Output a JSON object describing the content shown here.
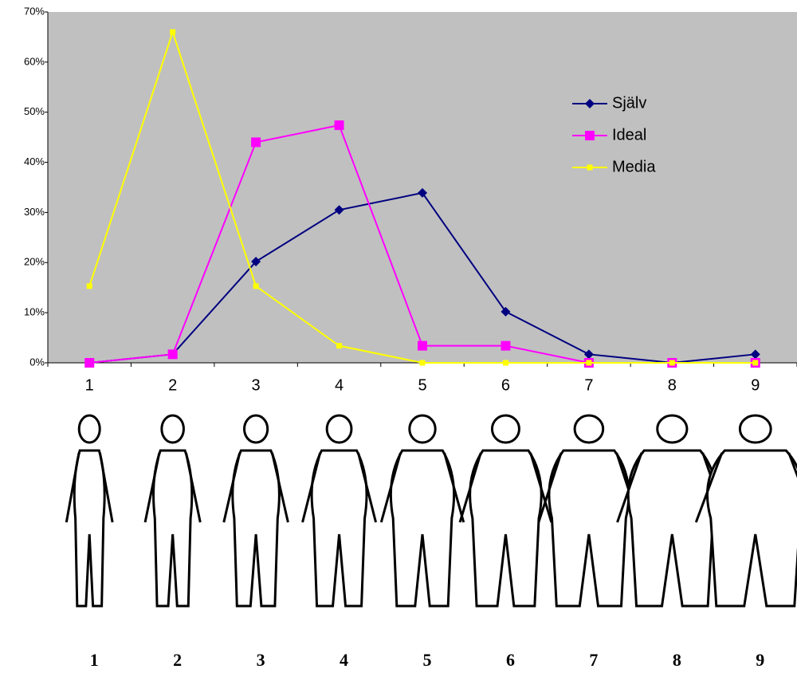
{
  "chart_data": {
    "type": "line",
    "categories": [
      "1",
      "2",
      "3",
      "4",
      "5",
      "6",
      "7",
      "8",
      "9"
    ],
    "series": [
      {
        "name": "Själv",
        "color": "#000080",
        "marker": "diamond",
        "values": [
          0,
          1.7,
          20.2,
          30.5,
          33.9,
          10.2,
          1.7,
          0,
          1.7
        ]
      },
      {
        "name": "Ideal",
        "color": "#ff00ff",
        "marker": "square",
        "values": [
          0,
          1.7,
          44,
          47.4,
          3.4,
          3.4,
          0,
          0,
          0
        ]
      },
      {
        "name": "Media",
        "color": "#ffff00",
        "marker": "small-square",
        "values": [
          15.3,
          66,
          15.3,
          3.4,
          0,
          0,
          0,
          0,
          0
        ]
      }
    ],
    "ylim": [
      0,
      70
    ],
    "yticks": [
      {
        "value": 0,
        "label": "0%"
      },
      {
        "value": 10,
        "label": "10%"
      },
      {
        "value": 20,
        "label": "20%"
      },
      {
        "value": 30,
        "label": "30%"
      },
      {
        "value": 40,
        "label": "40%"
      },
      {
        "value": 50,
        "label": "50%"
      },
      {
        "value": 60,
        "label": "60%"
      },
      {
        "value": 70,
        "label": "70%"
      }
    ],
    "grid": false,
    "legend": "right",
    "background": "#c0c0c0",
    "figure_labels": [
      "1",
      "2",
      "3",
      "4",
      "5",
      "6",
      "7",
      "8",
      "9"
    ]
  }
}
